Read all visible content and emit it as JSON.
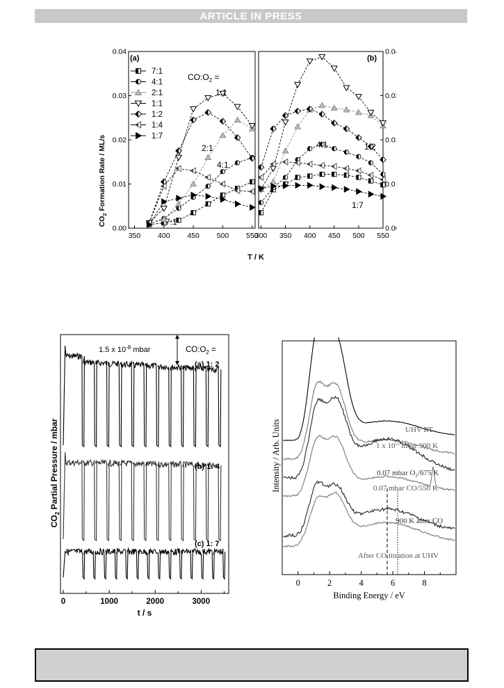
{
  "banner": {
    "text": "ARTICLE IN PRESS"
  },
  "figure_top": {
    "panel_a_label": "(a)",
    "panel_b_label": "(b)",
    "ratio_header": "CO:O",
    "ratio_header_sub": "2",
    "ratio_header_tail": " =",
    "ylabel_main": "CO",
    "ylabel_sub": "2",
    "ylabel_tail": " Formation Rate / ML/s",
    "xlabel": "T / K",
    "legend": [
      "7:1",
      "4:1",
      "2:1",
      "1:1",
      "1:2",
      "1:4",
      "1:7"
    ],
    "annotations_a": [
      "1:1",
      "2:1",
      "4:1",
      "7:1"
    ],
    "annotations_b": [
      "4:1",
      "1:2",
      "1:7"
    ]
  },
  "chart_data": [
    {
      "type": "line",
      "panel": "(a)",
      "xlabel": "T / K",
      "ylabel": "CO2 Formation Rate / ML/s",
      "xlim": [
        340,
        555
      ],
      "ylim": [
        0,
        0.04
      ],
      "xticks": [
        350,
        400,
        450,
        500,
        550
      ],
      "yticks": [
        0.0,
        0.01,
        0.02,
        0.03,
        0.04
      ],
      "series": [
        {
          "name": "7:1",
          "x": [
            375,
            400,
            425,
            450,
            475,
            500,
            525,
            550
          ],
          "y": [
            0.0008,
            0.0012,
            0.0018,
            0.0035,
            0.0055,
            0.0075,
            0.009,
            0.0105
          ]
        },
        {
          "name": "4:1",
          "x": [
            375,
            400,
            425,
            450,
            475,
            500,
            525,
            550
          ],
          "y": [
            0.001,
            0.0022,
            0.0045,
            0.007,
            0.0095,
            0.0128,
            0.0148,
            0.016
          ]
        },
        {
          "name": "2:1",
          "x": [
            375,
            400,
            425,
            450,
            475,
            500,
            525,
            550
          ],
          "y": [
            0.001,
            0.002,
            0.0055,
            0.01,
            0.016,
            0.021,
            0.0245,
            0.0225
          ]
        },
        {
          "name": "1:1",
          "x": [
            375,
            400,
            425,
            450,
            475,
            500,
            525,
            550
          ],
          "y": [
            0.0012,
            0.0045,
            0.016,
            0.027,
            0.0295,
            0.0305,
            0.0275,
            0.0232
          ]
        },
        {
          "name": "1:2",
          "x": [
            375,
            400,
            425,
            450,
            475,
            500,
            525,
            550
          ],
          "y": [
            0.0012,
            0.0105,
            0.0175,
            0.0245,
            0.0262,
            0.0242,
            0.0205,
            0.0158
          ]
        },
        {
          "name": "1:4",
          "x": [
            375,
            400,
            425,
            450,
            475,
            500,
            525,
            550
          ],
          "y": [
            0.0012,
            0.0095,
            0.0135,
            0.013,
            0.0115,
            0.01,
            0.0085,
            0.0083
          ]
        },
        {
          "name": "1:7",
          "x": [
            375,
            400,
            425,
            450,
            475,
            500,
            525,
            550
          ],
          "y": [
            0.0008,
            0.006,
            0.0068,
            0.0075,
            0.0072,
            0.0065,
            0.0055,
            0.0047
          ]
        }
      ]
    },
    {
      "type": "line",
      "panel": "(b)",
      "xlabel": "T / K",
      "xlim": [
        295,
        550
      ],
      "ylim": [
        0,
        0.04
      ],
      "xticks": [
        300,
        350,
        400,
        450,
        500,
        550
      ],
      "yticks": [
        0.0,
        0.01,
        0.02,
        0.03,
        0.04
      ],
      "series": [
        {
          "name": "7:1",
          "x": [
            300,
            325,
            350,
            375,
            400,
            425,
            450,
            475,
            500,
            525,
            550
          ],
          "y": [
            0.0035,
            0.0087,
            0.01,
            0.0115,
            0.0118,
            0.0122,
            0.0122,
            0.012,
            0.0115,
            0.0107,
            0.0098
          ]
        },
        {
          "name": "4:1",
          "x": [
            300,
            325,
            350,
            375,
            400,
            425,
            450,
            475,
            500,
            525,
            550
          ],
          "y": [
            0.0058,
            0.0092,
            0.0115,
            0.0155,
            0.018,
            0.019,
            0.018,
            0.0172,
            0.0162,
            0.0148,
            0.0122
          ]
        },
        {
          "name": "2:1",
          "x": [
            300,
            325,
            350,
            375,
            400,
            425,
            450,
            475,
            500,
            525,
            550
          ],
          "y": [
            0.0088,
            0.0105,
            0.0175,
            0.023,
            0.0268,
            0.0278,
            0.0272,
            0.0268,
            0.0262,
            0.0255,
            0.0232
          ]
        },
        {
          "name": "1:1",
          "x": [
            300,
            325,
            350,
            375,
            400,
            425,
            450,
            475,
            500,
            525,
            550
          ],
          "y": [
            0.0088,
            0.0135,
            0.024,
            0.0325,
            0.0378,
            0.0388,
            0.0362,
            0.0318,
            0.0298,
            0.0262,
            0.0238
          ]
        },
        {
          "name": "1:2",
          "x": [
            300,
            325,
            350,
            375,
            400,
            425,
            450,
            475,
            500,
            525,
            550
          ],
          "y": [
            0.0138,
            0.0225,
            0.0255,
            0.0265,
            0.027,
            0.0258,
            0.0238,
            0.0225,
            0.0205,
            0.0185,
            0.0155
          ]
        },
        {
          "name": "1:4",
          "x": [
            300,
            325,
            350,
            375,
            400,
            425,
            450,
            475,
            500,
            525,
            550
          ],
          "y": [
            0.0115,
            0.0145,
            0.015,
            0.0148,
            0.0145,
            0.0142,
            0.014,
            0.0135,
            0.013,
            0.012,
            0.011
          ]
        },
        {
          "name": "1:7",
          "x": [
            300,
            325,
            350,
            375,
            400,
            425,
            450,
            475,
            500,
            525,
            550
          ],
          "y": [
            0.009,
            0.0095,
            0.0096,
            0.0097,
            0.0097,
            0.0094,
            0.0092,
            0.0088,
            0.0083,
            0.0077,
            0.0072
          ]
        }
      ]
    },
    {
      "type": "line",
      "panel": "transients",
      "xlabel": "t / s",
      "ylabel": "CO2 Partial Pressure / mbar",
      "xlim": [
        -60,
        3600
      ],
      "xticks": [
        0,
        1000,
        2000,
        3000
      ],
      "scale_bar_label": "1.5 x  10-8 mbar",
      "series": [
        {
          "name": "(a) 1: 2",
          "pulses": 12
        },
        {
          "name": "(b) 1: 4",
          "pulses": 12
        },
        {
          "name": "(c) 1: 7",
          "pulses": 14
        }
      ]
    },
    {
      "type": "line",
      "panel": "spectra",
      "xlabel": "Binding Energy / eV",
      "ylabel": "Intensity / Arb. Units",
      "xlim": [
        -1,
        10
      ],
      "xticks": [
        0,
        2,
        4,
        6,
        8
      ],
      "series": [
        {
          "name": "UHV RT"
        },
        {
          "name": "1 x 10-5 mbar 900 K"
        },
        {
          "name": "0.07 mbar O2/675 K"
        },
        {
          "name": "0.07 mbar CO/550 K"
        },
        {
          "name": "900 K after CO"
        },
        {
          "name": "After CO titration at UHV"
        }
      ]
    }
  ],
  "figure_transients": {
    "ylabel_main": "CO",
    "ylabel_sub": "2",
    "ylabel_tail": " Partial Pressure / mbar",
    "xlabel": "t / s",
    "scale_text": "1.5 x  10",
    "scale_exp": "-8",
    "scale_unit": " mbar",
    "ratio_header": "CO:O",
    "ratio_header_sub": "2",
    "ratio_header_tail": " =",
    "label_a": "(a) 1: 2",
    "label_b": "(b) 1: 4",
    "label_c": "(c) 1: 7"
  },
  "figure_spectra": {
    "ylabel": "Intensity / Arb. Units",
    "xlabel": "Binding Energy / eV",
    "labels": {
      "uhv_rt": "UHV RT",
      "l2_a": "1 x 10",
      "l2_exp": "-5",
      "l2_b": " mbar 900 K",
      "l3_a": "0.07 mbar O",
      "l3_sub": "2",
      "l3_b": "/675 K",
      "l4": "0.07 mbar CO/550 K",
      "l5": "900 K after CO",
      "l6": "After CO titration at UHV"
    }
  },
  "footer": {
    "text": ""
  }
}
